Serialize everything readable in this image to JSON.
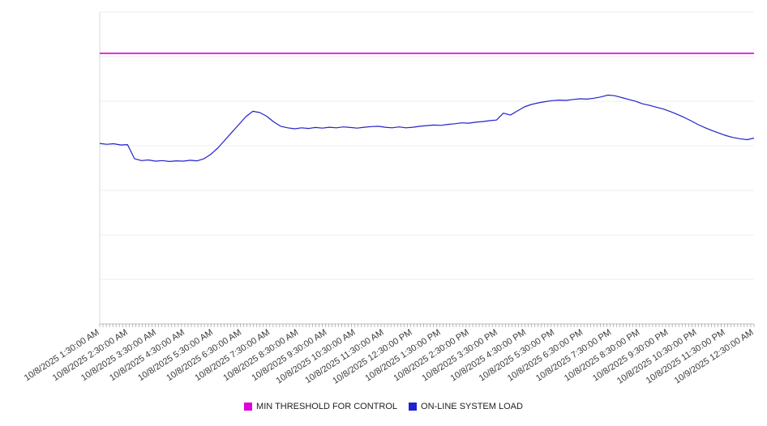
{
  "chart_data": {
    "type": "line",
    "title": "",
    "xlabel": "",
    "ylabel": "",
    "ylim": [
      0,
      100
    ],
    "grid": "horizontal",
    "legend_position": "bottom",
    "x_labels": [
      "10/8/2025 1:30:00 AM",
      "10/8/2025 2:30:00 AM",
      "10/8/2025 3:30:00 AM",
      "10/8/2025 4:30:00 AM",
      "10/8/2025 5:30:00 AM",
      "10/8/2025 6:30:00 AM",
      "10/8/2025 7:30:00 AM",
      "10/8/2025 8:30:00 AM",
      "10/8/2025 9:30:00 AM",
      "10/8/2025 10:30:00 AM",
      "10/8/2025 11:30:00 AM",
      "10/8/2025 12:30:00 PM",
      "10/8/2025 1:30:00 PM",
      "10/8/2025 2:30:00 PM",
      "10/8/2025 3:30:00 PM",
      "10/8/2025 4:30:00 PM",
      "10/8/2025 5:30:00 PM",
      "10/8/2025 6:30:00 PM",
      "10/8/2025 7:30:00 PM",
      "10/8/2025 8:30:00 PM",
      "10/8/2025 9:30:00 PM",
      "10/8/2025 10:30:00 PM",
      "10/8/2025 11:30:00 PM",
      "10/9/2025 12:30:00 AM"
    ],
    "series": [
      {
        "name": "MIN THRESHOLD FOR CONTROL",
        "type": "threshold",
        "color": "#dd00dd",
        "value": 86.8
      },
      {
        "name": "ON-LINE SYSTEM LOAD",
        "type": "line",
        "color": "#2222cc",
        "values": [
          57.9,
          57.6,
          57.8,
          57.4,
          57.5,
          53.0,
          52.4,
          52.6,
          52.2,
          52.4,
          52.1,
          52.3,
          52.2,
          52.5,
          52.3,
          53.0,
          54.5,
          56.5,
          59.0,
          61.5,
          64.0,
          66.5,
          68.2,
          67.8,
          66.6,
          64.8,
          63.4,
          62.9,
          62.6,
          62.9,
          62.7,
          63.0,
          62.8,
          63.1,
          62.9,
          63.2,
          63.0,
          62.8,
          63.1,
          63.3,
          63.4,
          63.1,
          62.9,
          63.2,
          62.9,
          63.1,
          63.4,
          63.6,
          63.8,
          63.7,
          64.0,
          64.2,
          64.5,
          64.4,
          64.7,
          64.9,
          65.2,
          65.4,
          67.6,
          67.0,
          68.3,
          69.6,
          70.4,
          70.9,
          71.3,
          71.6,
          71.8,
          71.7,
          72.0,
          72.2,
          72.1,
          72.4,
          72.8,
          73.4,
          73.2,
          72.6,
          72.0,
          71.4,
          70.6,
          70.1,
          69.5,
          68.9,
          68.1,
          67.2,
          66.2,
          65.1,
          63.9,
          62.9,
          62.0,
          61.2,
          60.4,
          59.8,
          59.4,
          59.1,
          59.6
        ]
      }
    ]
  }
}
